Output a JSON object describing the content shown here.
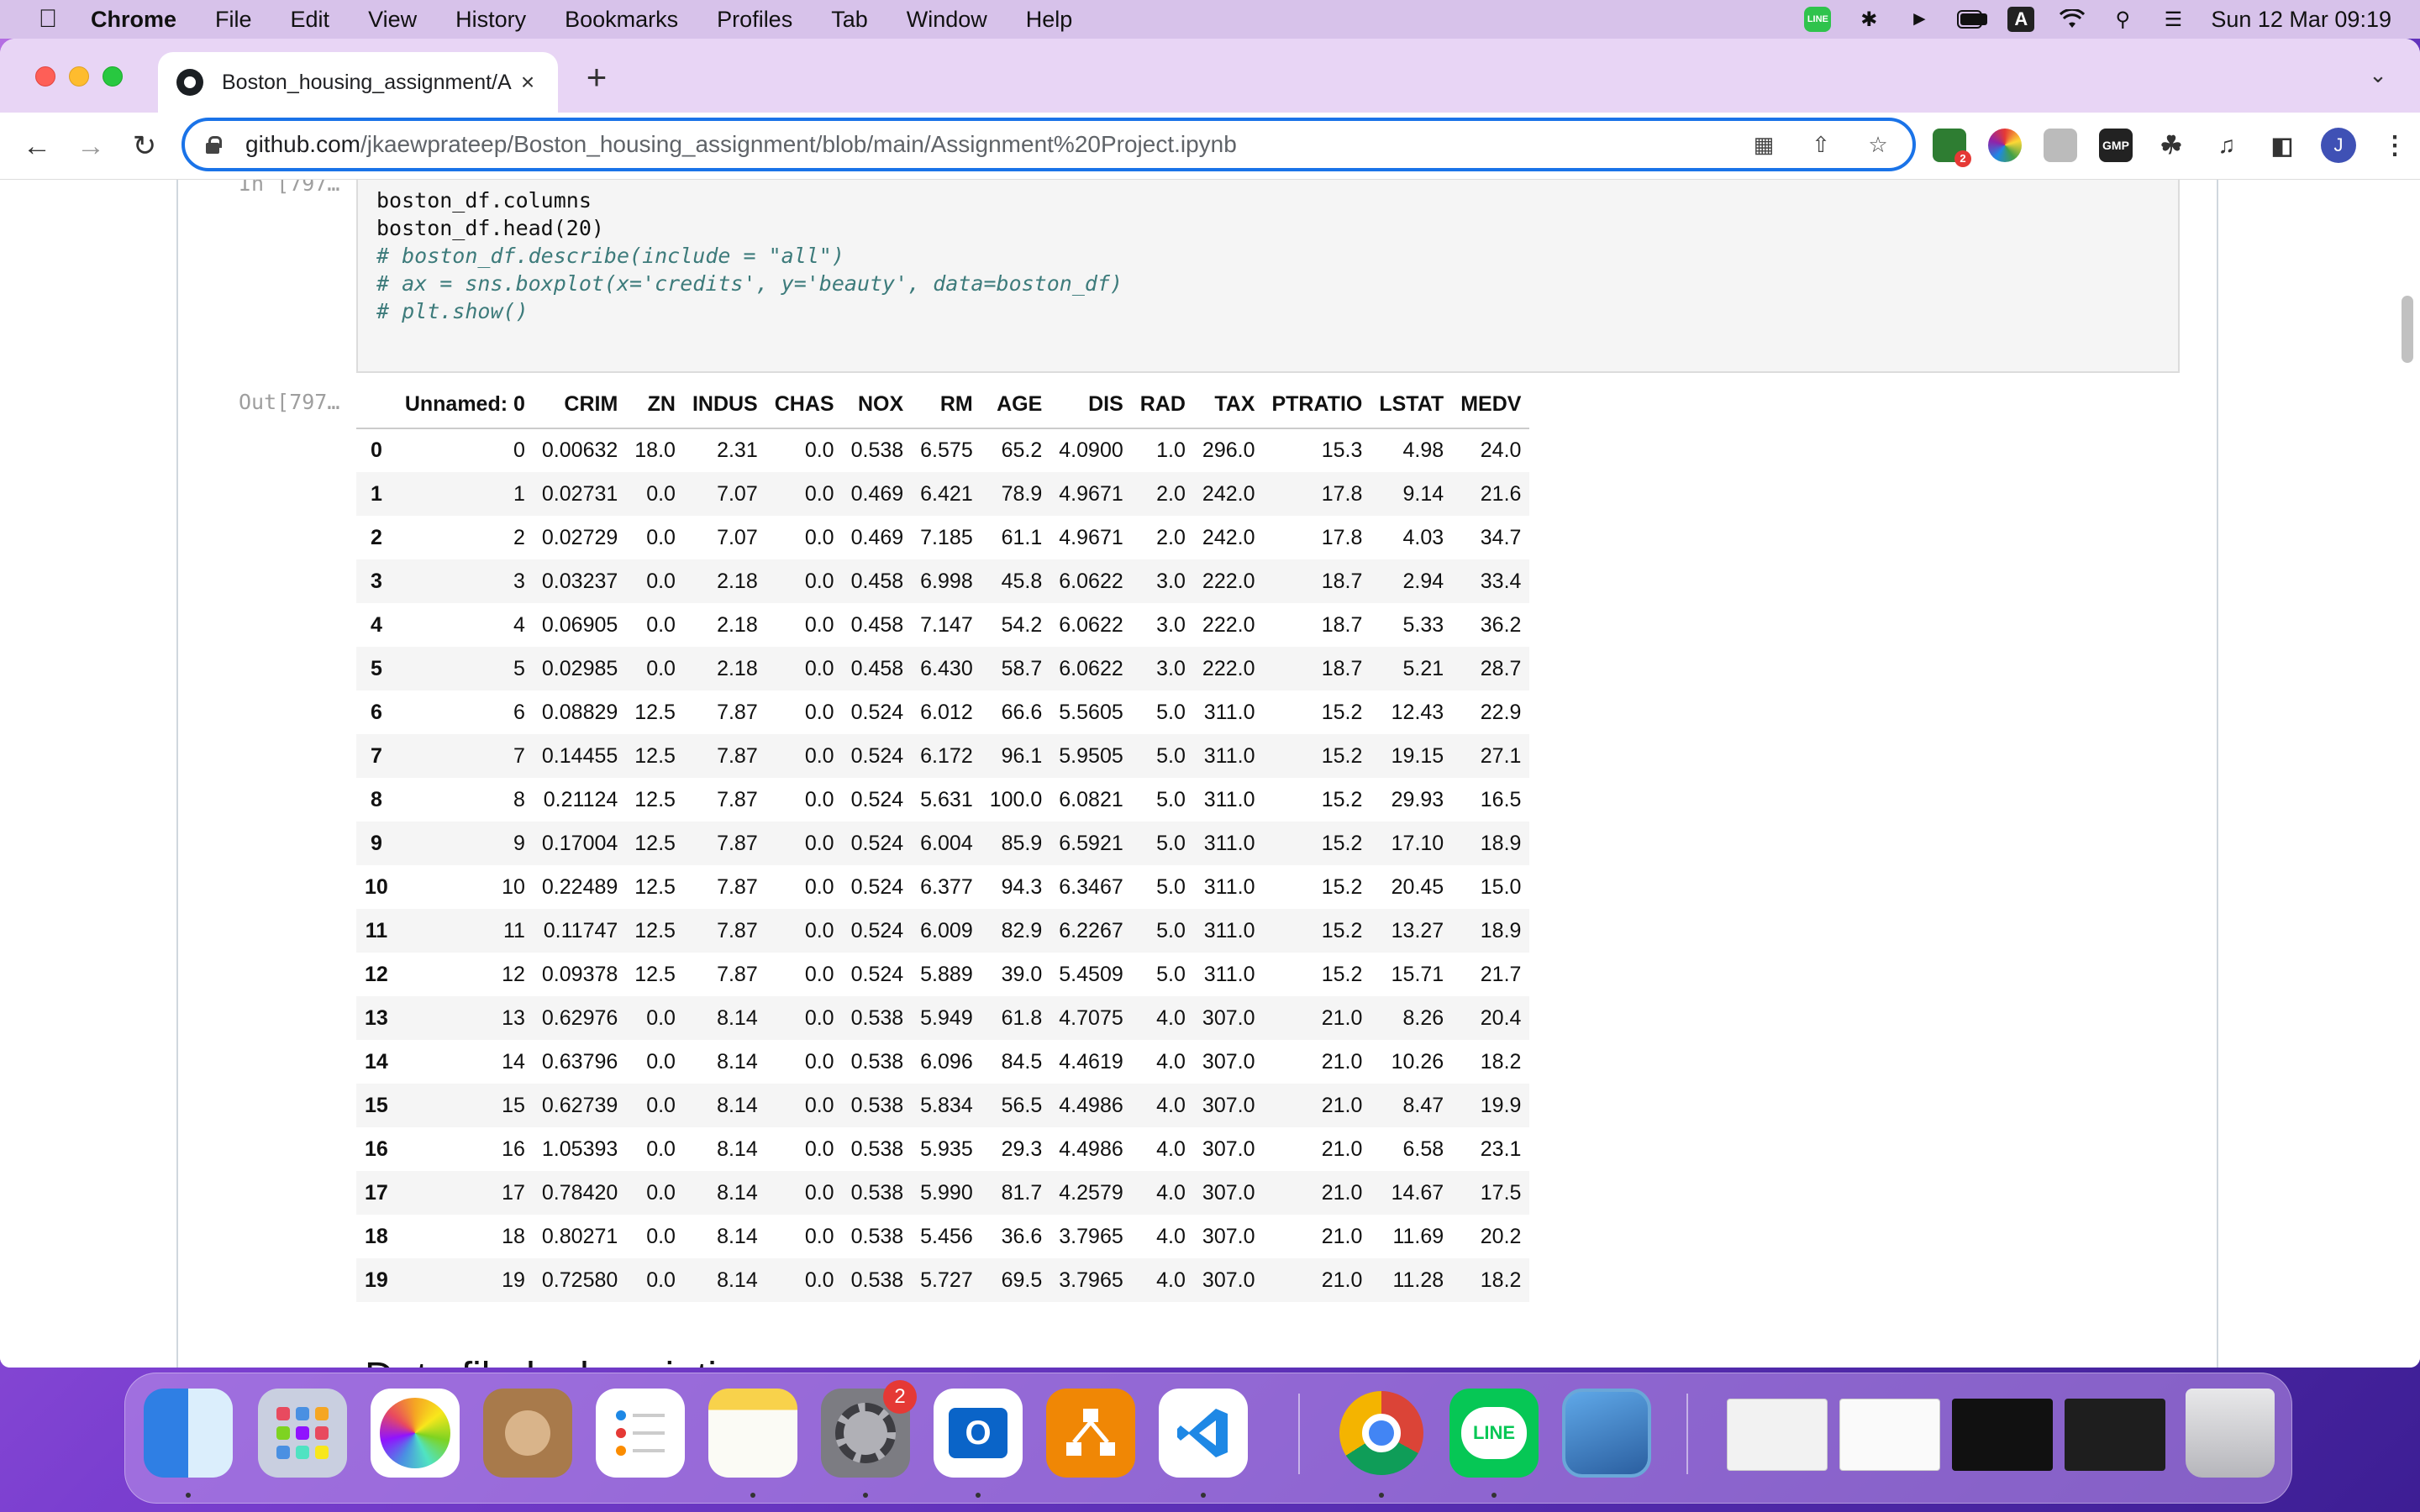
{
  "menubar": {
    "app_name": "Chrome",
    "menus": [
      "File",
      "Edit",
      "View",
      "History",
      "Bookmarks",
      "Profiles",
      "Tab",
      "Window",
      "Help"
    ],
    "a_indicator": "A",
    "battery_level": 0.85,
    "clock": "Sun 12 Mar  09:19"
  },
  "browser": {
    "tab_title": "Boston_housing_assignment/A",
    "url_host": "github.com",
    "url_path": "/jkaewprateep/Boston_housing_assignment/blob/main/Assignment%20Project.ipynb",
    "extension_badge": "2",
    "extension_label": "GMP",
    "profile_initial": "J"
  },
  "notebook": {
    "in_prompt": "In [797…",
    "out_prompt": "Out[797…",
    "code_lines": [
      {
        "text": "boston_df.columns",
        "comment": false
      },
      {
        "text": "boston_df.head(20)",
        "comment": false
      },
      {
        "text": "# boston_df.describe(include = \"all\")",
        "comment": true
      },
      {
        "text": "# ax = sns.boxplot(x='credits', y='beauty', data=boston_df)",
        "comment": true
      },
      {
        "text": "# plt.show()",
        "comment": true
      }
    ],
    "table": {
      "columns": [
        "",
        "Unnamed: 0",
        "CRIM",
        "ZN",
        "INDUS",
        "CHAS",
        "NOX",
        "RM",
        "AGE",
        "DIS",
        "RAD",
        "TAX",
        "PTRATIO",
        "LSTAT",
        "MEDV"
      ],
      "rows": [
        [
          "0",
          "0",
          "0.00632",
          "18.0",
          "2.31",
          "0.0",
          "0.538",
          "6.575",
          "65.2",
          "4.0900",
          "1.0",
          "296.0",
          "15.3",
          "4.98",
          "24.0"
        ],
        [
          "1",
          "1",
          "0.02731",
          "0.0",
          "7.07",
          "0.0",
          "0.469",
          "6.421",
          "78.9",
          "4.9671",
          "2.0",
          "242.0",
          "17.8",
          "9.14",
          "21.6"
        ],
        [
          "2",
          "2",
          "0.02729",
          "0.0",
          "7.07",
          "0.0",
          "0.469",
          "7.185",
          "61.1",
          "4.9671",
          "2.0",
          "242.0",
          "17.8",
          "4.03",
          "34.7"
        ],
        [
          "3",
          "3",
          "0.03237",
          "0.0",
          "2.18",
          "0.0",
          "0.458",
          "6.998",
          "45.8",
          "6.0622",
          "3.0",
          "222.0",
          "18.7",
          "2.94",
          "33.4"
        ],
        [
          "4",
          "4",
          "0.06905",
          "0.0",
          "2.18",
          "0.0",
          "0.458",
          "7.147",
          "54.2",
          "6.0622",
          "3.0",
          "222.0",
          "18.7",
          "5.33",
          "36.2"
        ],
        [
          "5",
          "5",
          "0.02985",
          "0.0",
          "2.18",
          "0.0",
          "0.458",
          "6.430",
          "58.7",
          "6.0622",
          "3.0",
          "222.0",
          "18.7",
          "5.21",
          "28.7"
        ],
        [
          "6",
          "6",
          "0.08829",
          "12.5",
          "7.87",
          "0.0",
          "0.524",
          "6.012",
          "66.6",
          "5.5605",
          "5.0",
          "311.0",
          "15.2",
          "12.43",
          "22.9"
        ],
        [
          "7",
          "7",
          "0.14455",
          "12.5",
          "7.87",
          "0.0",
          "0.524",
          "6.172",
          "96.1",
          "5.9505",
          "5.0",
          "311.0",
          "15.2",
          "19.15",
          "27.1"
        ],
        [
          "8",
          "8",
          "0.21124",
          "12.5",
          "7.87",
          "0.0",
          "0.524",
          "5.631",
          "100.0",
          "6.0821",
          "5.0",
          "311.0",
          "15.2",
          "29.93",
          "16.5"
        ],
        [
          "9",
          "9",
          "0.17004",
          "12.5",
          "7.87",
          "0.0",
          "0.524",
          "6.004",
          "85.9",
          "6.5921",
          "5.0",
          "311.0",
          "15.2",
          "17.10",
          "18.9"
        ],
        [
          "10",
          "10",
          "0.22489",
          "12.5",
          "7.87",
          "0.0",
          "0.524",
          "6.377",
          "94.3",
          "6.3467",
          "5.0",
          "311.0",
          "15.2",
          "20.45",
          "15.0"
        ],
        [
          "11",
          "11",
          "0.11747",
          "12.5",
          "7.87",
          "0.0",
          "0.524",
          "6.009",
          "82.9",
          "6.2267",
          "5.0",
          "311.0",
          "15.2",
          "13.27",
          "18.9"
        ],
        [
          "12",
          "12",
          "0.09378",
          "12.5",
          "7.87",
          "0.0",
          "0.524",
          "5.889",
          "39.0",
          "5.4509",
          "5.0",
          "311.0",
          "15.2",
          "15.71",
          "21.7"
        ],
        [
          "13",
          "13",
          "0.62976",
          "0.0",
          "8.14",
          "0.0",
          "0.538",
          "5.949",
          "61.8",
          "4.7075",
          "4.0",
          "307.0",
          "21.0",
          "8.26",
          "20.4"
        ],
        [
          "14",
          "14",
          "0.63796",
          "0.0",
          "8.14",
          "0.0",
          "0.538",
          "6.096",
          "84.5",
          "4.4619",
          "4.0",
          "307.0",
          "21.0",
          "10.26",
          "18.2"
        ],
        [
          "15",
          "15",
          "0.62739",
          "0.0",
          "8.14",
          "0.0",
          "0.538",
          "5.834",
          "56.5",
          "4.4986",
          "4.0",
          "307.0",
          "21.0",
          "8.47",
          "19.9"
        ],
        [
          "16",
          "16",
          "1.05393",
          "0.0",
          "8.14",
          "0.0",
          "0.538",
          "5.935",
          "29.3",
          "4.4986",
          "4.0",
          "307.0",
          "21.0",
          "6.58",
          "23.1"
        ],
        [
          "17",
          "17",
          "0.78420",
          "0.0",
          "8.14",
          "0.0",
          "0.538",
          "5.990",
          "81.7",
          "4.2579",
          "4.0",
          "307.0",
          "21.0",
          "14.67",
          "17.5"
        ],
        [
          "18",
          "18",
          "0.80271",
          "0.0",
          "8.14",
          "0.0",
          "0.538",
          "5.456",
          "36.6",
          "3.7965",
          "4.0",
          "307.0",
          "21.0",
          "11.69",
          "20.2"
        ],
        [
          "19",
          "19",
          "0.72580",
          "0.0",
          "8.14",
          "0.0",
          "0.538",
          "5.727",
          "69.5",
          "3.7965",
          "4.0",
          "307.0",
          "21.0",
          "11.28",
          "18.2"
        ]
      ]
    },
    "section_title": "Data fileds description"
  },
  "dock": {
    "settings_badge": "2",
    "line_label": "LINE",
    "apps": [
      "finder",
      "launchpad",
      "photos",
      "contacts",
      "reminders",
      "notes",
      "system-settings",
      "outlook",
      "drawio",
      "vscode",
      "chrome",
      "line",
      "preview"
    ]
  },
  "colors": {
    "omnibox_border": "#1a73e8",
    "menubar": "#d7c2ea",
    "tabstrip": "#e8d5f5",
    "comment": "#3d7b7b"
  }
}
